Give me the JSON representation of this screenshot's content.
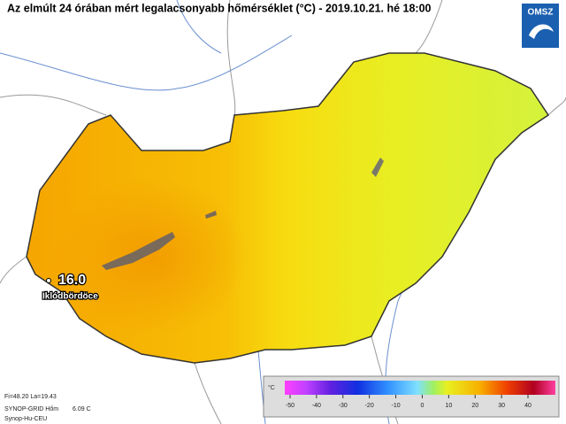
{
  "header": {
    "title": "Az elmúlt 24 órában mért legalacsonyabb hőmérséklet (°C) - 2019.10.21. hé 18:00",
    "logo": "OMSZ"
  },
  "station": {
    "value": "16.0",
    "name": "Iklódbördöce"
  },
  "legend": {
    "unit": "°C",
    "ticks": [
      -50,
      -40,
      -30,
      -20,
      -10,
      0,
      10,
      20,
      30,
      40
    ]
  },
  "info": {
    "coords": "Fi=48.20 La=19.43",
    "source": "SYNOP-GRID Hőm",
    "reading": "6.09 C",
    "grid": "Synop-Hu-CEU"
  }
}
